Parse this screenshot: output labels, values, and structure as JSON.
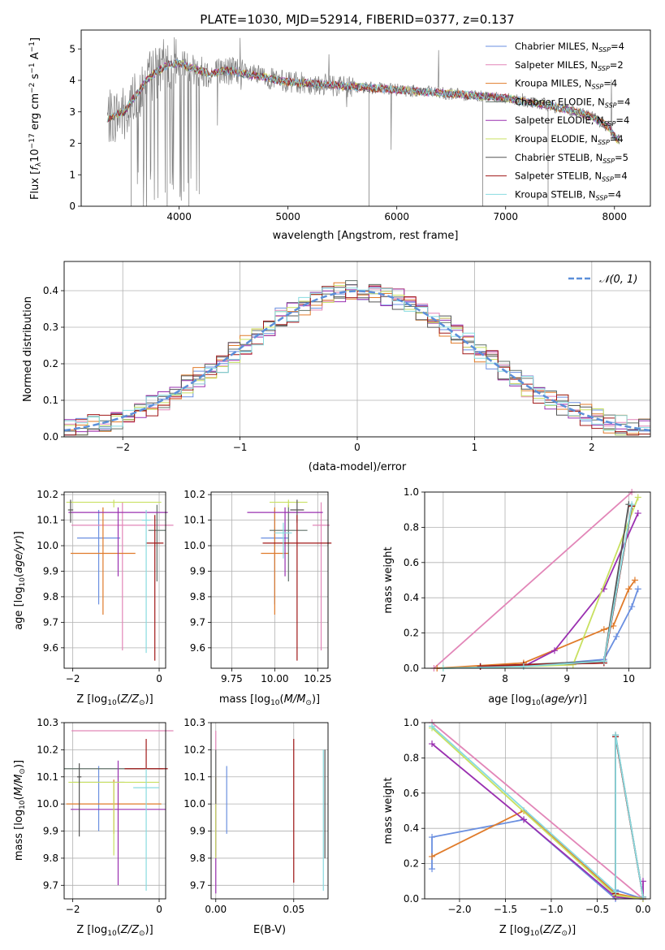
{
  "figure_title": "PLATE=1030, MJD=52914, FIBERID=0377, z=0.137",
  "colors": {
    "Chabrier MILES": "#6a8fe0",
    "Salpeter MILES": "#e286b8",
    "Kroupa MILES": "#e07b2a",
    "Chabrier ELODIE": "#607068",
    "Salpeter ELODIE": "#9a30b0",
    "Kroupa ELODIE": "#c8e060",
    "Chabrier STELIB": "#555555",
    "Salpeter STELIB": "#a01818",
    "Kroupa STELIB": "#88dbe0",
    "gaussian": "#5b8fd9",
    "grid": "#b0b0b0",
    "spectrum": "#808080"
  },
  "chart_data": [
    {
      "id": "spectrum",
      "type": "line",
      "title": "PLATE=1030, MJD=52914, FIBERID=0377, z=0.137",
      "xlabel": "wavelength [Angstrom, rest frame]",
      "ylabel": "Flux [f_λ 10^-17 erg cm^-2 s^-1 A^-1]",
      "xlim": [
        3100,
        8330
      ],
      "ylim": [
        0,
        5.6
      ],
      "xticks": [
        "4000",
        "5000",
        "6000",
        "7000",
        "8000"
      ],
      "yticks": [
        "0",
        "1",
        "2",
        "3",
        "4",
        "5"
      ],
      "grid": false,
      "legend_position": "right",
      "legend": [
        "Chabrier MILES, N_SSP=4",
        "Salpeter MILES, N_SSP=2",
        "Kroupa MILES, N_SSP=4",
        "Chabrier ELODIE, N_SSP=4",
        "Salpeter ELODIE, N_SSP=4",
        "Kroupa ELODIE, N_SSP=4",
        "Chabrier STELIB, N_SSP=5",
        "Salpeter STELIB, N_SSP=4",
        "Kroupa STELIB, N_SSP=4"
      ],
      "continuum": [
        [
          3340,
          2.8
        ],
        [
          3400,
          2.85
        ],
        [
          3450,
          2.95
        ],
        [
          3500,
          3.0
        ],
        [
          3550,
          3.3
        ],
        [
          3600,
          3.5
        ],
        [
          3700,
          4.0
        ],
        [
          3800,
          4.3
        ],
        [
          3900,
          4.5
        ],
        [
          4000,
          4.55
        ],
        [
          4100,
          4.4
        ],
        [
          4200,
          4.3
        ],
        [
          4300,
          4.2
        ],
        [
          4400,
          4.3
        ],
        [
          4500,
          4.3
        ],
        [
          4600,
          4.2
        ],
        [
          4700,
          4.15
        ],
        [
          4800,
          4.1
        ],
        [
          4900,
          4.0
        ],
        [
          5000,
          3.95
        ],
        [
          5200,
          3.9
        ],
        [
          5400,
          3.85
        ],
        [
          5600,
          3.8
        ],
        [
          5800,
          3.75
        ],
        [
          6000,
          3.7
        ],
        [
          6200,
          3.65
        ],
        [
          6400,
          3.6
        ],
        [
          6600,
          3.55
        ],
        [
          6800,
          3.5
        ],
        [
          7000,
          3.45
        ],
        [
          7200,
          3.3
        ],
        [
          7400,
          3.2
        ],
        [
          7600,
          3.05
        ],
        [
          7800,
          2.85
        ],
        [
          7950,
          2.5
        ],
        [
          8000,
          2.2
        ],
        [
          8050,
          2.05
        ]
      ]
    },
    {
      "id": "residuals",
      "type": "line",
      "xlabel": "(data-model)/error",
      "ylabel": "Normed distribution",
      "xlim": [
        -2.5,
        2.5
      ],
      "ylim": [
        0,
        0.48
      ],
      "xticks": [
        "−2",
        "−1",
        "0",
        "1",
        "2"
      ],
      "yticks": [
        "0.0",
        "0.1",
        "0.2",
        "0.3",
        "0.4"
      ],
      "grid": true,
      "legend_position": "top-right",
      "legend": [
        "𝒩(0, 1)"
      ],
      "gaussian": {
        "mean": 0,
        "sigma": 1
      }
    },
    {
      "id": "age-vs-Z",
      "type": "scatter",
      "xlabel": "Z [log10(Z/Z⊙)]",
      "ylabel": "age [log10(age/yr)]",
      "xlim": [
        -2.2,
        0.15
      ],
      "ylim": [
        9.52,
        10.21
      ],
      "xticks": [
        "−2",
        "0"
      ],
      "yticks": [
        "9.6",
        "9.7",
        "9.8",
        "9.9",
        "10.0",
        "10.1",
        "10.2"
      ],
      "grid": true,
      "points": [
        {
          "model": "Chabrier MILES",
          "x": -1.4,
          "xerr": 0.5,
          "y": 10.03,
          "yerr": [
            0.26,
            0.11
          ]
        },
        {
          "model": "Salpeter MILES",
          "x": -0.85,
          "xerr": 1.18,
          "y": 10.08,
          "yerr": [
            0.49,
            0.09
          ]
        },
        {
          "model": "Kroupa MILES",
          "x": -1.3,
          "xerr": 0.75,
          "y": 9.97,
          "yerr": [
            0.24,
            0.18
          ]
        },
        {
          "model": "Chabrier ELODIE",
          "x": -0.05,
          "xerr": 0.2,
          "y": 10.06,
          "yerr": [
            0.2,
            0.1
          ]
        },
        {
          "model": "Salpeter ELODIE",
          "x": -0.95,
          "xerr": 1.15,
          "y": 10.13,
          "yerr": [
            0.25,
            0.02
          ]
        },
        {
          "model": "Kroupa ELODIE",
          "x": -1.05,
          "xerr": 1.1,
          "y": 10.17,
          "yerr": [
            0.02,
            0.01
          ]
        },
        {
          "model": "Chabrier STELIB",
          "x": -2.05,
          "xerr": 0.06,
          "y": 10.14,
          "yerr": [
            0.05,
            0.04
          ]
        },
        {
          "model": "Salpeter STELIB",
          "x": -0.1,
          "xerr": 0.2,
          "y": 10.01,
          "yerr": [
            0.46,
            0.11
          ]
        },
        {
          "model": "Kroupa STELIB",
          "x": -0.3,
          "xerr": 0.1,
          "y": 10.1,
          "yerr": [
            0.52,
            0.04
          ]
        }
      ]
    },
    {
      "id": "age-vs-mass",
      "type": "scatter",
      "xlabel": "mass [log10(M/M⊙)]",
      "ylabel": "",
      "xlim": [
        9.63,
        10.31
      ],
      "ylim": [
        9.52,
        10.21
      ],
      "xticks": [
        "9.75",
        "10.00",
        "10.25"
      ],
      "yticks": [
        "9.6",
        "9.7",
        "9.8",
        "9.9",
        "10.0",
        "10.1",
        "10.2"
      ],
      "grid": true,
      "points": [
        {
          "model": "Chabrier MILES",
          "x": 10.0,
          "xerr": 0.08,
          "y": 10.03,
          "yerr": [
            0.26,
            0.11
          ]
        },
        {
          "model": "Salpeter MILES",
          "x": 10.27,
          "xerr": 0.05,
          "y": 10.08,
          "yerr": [
            0.49,
            0.09
          ]
        },
        {
          "model": "Kroupa MILES",
          "x": 10.0,
          "xerr": 0.08,
          "y": 9.97,
          "yerr": [
            0.24,
            0.18
          ]
        },
        {
          "model": "Chabrier ELODIE",
          "x": 10.08,
          "xerr": 0.11,
          "y": 10.06,
          "yerr": [
            0.2,
            0.1
          ]
        },
        {
          "model": "Salpeter ELODIE",
          "x": 10.06,
          "xerr": 0.22,
          "y": 10.13,
          "yerr": [
            0.25,
            0.02
          ]
        },
        {
          "model": "Kroupa ELODIE",
          "x": 10.08,
          "xerr": 0.11,
          "y": 10.17,
          "yerr": [
            0.02,
            0.01
          ]
        },
        {
          "model": "Chabrier STELIB",
          "x": 10.13,
          "xerr": 0.04,
          "y": 10.14,
          "yerr": [
            0.05,
            0.04
          ]
        },
        {
          "model": "Salpeter STELIB",
          "x": 10.13,
          "xerr": 0.2,
          "y": 10.01,
          "yerr": [
            0.46,
            0.11
          ]
        },
        {
          "model": "Kroupa STELIB",
          "x": 10.05,
          "xerr": 0.05,
          "y": 10.05,
          "yerr": [
            0.1,
            0.04
          ]
        }
      ]
    },
    {
      "id": "mass-weight-vs-age",
      "type": "line",
      "xlabel": "age [log10(age/yr)]",
      "ylabel": "mass weight",
      "xlim": [
        6.7,
        10.35
      ],
      "ylim": [
        0,
        1.0
      ],
      "xticks": [
        "7",
        "8",
        "9",
        "10"
      ],
      "yticks": [
        "0.0",
        "0.2",
        "0.4",
        "0.6",
        "0.8",
        "1.0"
      ],
      "grid": true,
      "series": [
        {
          "model": "Chabrier MILES",
          "x": [
            7.6,
            8.3,
            9.6,
            9.8,
            10.05,
            10.15
          ],
          "y": [
            0.01,
            0.01,
            0.05,
            0.18,
            0.35,
            0.45
          ]
        },
        {
          "model": "Salpeter MILES",
          "x": [
            6.85,
            10.05
          ],
          "y": [
            0.0,
            1.0
          ]
        },
        {
          "model": "Kroupa MILES",
          "x": [
            6.9,
            8.3,
            9.6,
            9.75,
            10.0,
            10.1
          ],
          "y": [
            0.0,
            0.03,
            0.22,
            0.24,
            0.45,
            0.5
          ]
        },
        {
          "model": "Chabrier ELODIE",
          "x": [
            7.6,
            8.3,
            9.6,
            10.05
          ],
          "y": [
            0.01,
            0.02,
            0.03,
            0.92
          ]
        },
        {
          "model": "Salpeter ELODIE",
          "x": [
            8.3,
            8.8,
            9.6,
            10.15
          ],
          "y": [
            0.01,
            0.1,
            0.45,
            0.88
          ]
        },
        {
          "model": "Kroupa ELODIE",
          "x": [
            7.0,
            8.3,
            9.1,
            10.15
          ],
          "y": [
            0.0,
            0.01,
            0.02,
            0.97
          ]
        },
        {
          "model": "Chabrier STELIB",
          "x": [
            7.6,
            8.3,
            9.6,
            10.0,
            10.05
          ],
          "y": [
            0.01,
            0.02,
            0.04,
            0.93,
            0.92
          ]
        },
        {
          "model": "Salpeter STELIB",
          "x": [
            7.6,
            8.3,
            9.6,
            10.05
          ],
          "y": [
            0.01,
            0.02,
            0.03,
            0.92
          ]
        },
        {
          "model": "Kroupa STELIB",
          "x": [
            7.0,
            8.3,
            9.6,
            10.05
          ],
          "y": [
            0.0,
            0.01,
            0.04,
            0.93
          ]
        }
      ]
    },
    {
      "id": "mass-vs-Z",
      "type": "scatter",
      "xlabel": "Z [log10(Z/Z⊙)]",
      "ylabel": "mass [log10(M/M⊙)]",
      "xlim": [
        -2.2,
        0.15
      ],
      "ylim": [
        9.65,
        10.3
      ],
      "xticks": [
        "−2",
        "0"
      ],
      "yticks": [
        "9.7",
        "9.8",
        "9.9",
        "10.0",
        "10.1",
        "10.2",
        "10.3"
      ],
      "grid": true,
      "points": [
        {
          "model": "Chabrier MILES",
          "x": -1.4,
          "xerr": 0.6,
          "y": 10.08,
          "yerr": [
            0.18,
            0.06
          ]
        },
        {
          "model": "Salpeter MILES",
          "x": -0.85,
          "xerr": 1.18,
          "y": 10.27,
          "yerr": [
            0.0,
            0.0
          ]
        },
        {
          "model": "Kroupa MILES",
          "x": -1.05,
          "xerr": 1.1,
          "y": 10.0,
          "yerr": [
            0.11,
            0.09
          ]
        },
        {
          "model": "Chabrier ELODIE",
          "x": -1.05,
          "xerr": 1.15,
          "y": 10.13,
          "yerr": [
            0.0,
            0.0
          ]
        },
        {
          "model": "Salpeter ELODIE",
          "x": -0.95,
          "xerr": 1.1,
          "y": 9.98,
          "yerr": [
            0.28,
            0.18
          ]
        },
        {
          "model": "Kroupa ELODIE",
          "x": -1.05,
          "xerr": 1.05,
          "y": 10.08,
          "yerr": [
            0.27,
            0.0
          ]
        },
        {
          "model": "Chabrier STELIB",
          "x": -1.85,
          "xerr": 0.05,
          "y": 10.1,
          "yerr": [
            0.22,
            0.05
          ]
        },
        {
          "model": "Salpeter STELIB",
          "x": -0.3,
          "xerr": 0.5,
          "y": 10.13,
          "yerr": [
            0.0,
            0.11
          ]
        },
        {
          "model": "Kroupa STELIB",
          "x": -0.3,
          "xerr": 0.3,
          "y": 10.06,
          "yerr": [
            0.38,
            0.07
          ]
        }
      ]
    },
    {
      "id": "mass-vs-EBV",
      "type": "scatter",
      "xlabel": "E(B-V)",
      "ylabel": "",
      "xlim": [
        -0.003,
        0.072
      ],
      "ylim": [
        9.65,
        10.3
      ],
      "xticks": [
        "0.00",
        "0.05"
      ],
      "yticks": [
        "9.7",
        "9.8",
        "9.9",
        "10.0",
        "10.1",
        "10.2",
        "10.3"
      ],
      "grid": true,
      "points": [
        {
          "model": "Chabrier MILES",
          "x": 0.007,
          "y": 10.02,
          "yerr": [
            0.13,
            0.12
          ]
        },
        {
          "model": "Salpeter MILES",
          "x": 0.0,
          "y": 10.15,
          "yerr": [
            0.35,
            0.12
          ]
        },
        {
          "model": "Kroupa MILES",
          "x": 0.0,
          "y": 10.0,
          "yerr": [
            0.1,
            0.1
          ]
        },
        {
          "model": "Chabrier ELODIE",
          "x": 0.0,
          "y": 10.05,
          "yerr": [
            0.24,
            0.15
          ]
        },
        {
          "model": "Salpeter ELODIE",
          "x": 0.0,
          "y": 9.85,
          "yerr": [
            0.18,
            0.15
          ]
        },
        {
          "model": "Kroupa ELODIE",
          "x": 0.0,
          "y": 9.9,
          "yerr": [
            0.1,
            0.1
          ]
        },
        {
          "model": "Chabrier STELIB",
          "x": 0.07,
          "y": 9.95,
          "yerr": [
            0.15,
            0.25
          ]
        },
        {
          "model": "Salpeter STELIB",
          "x": 0.05,
          "y": 9.97,
          "yerr": [
            0.26,
            0.27
          ]
        },
        {
          "model": "Kroupa STELIB",
          "x": 0.069,
          "y": 9.95,
          "yerr": [
            0.27,
            0.25
          ]
        }
      ]
    },
    {
      "id": "mass-weight-vs-Z",
      "type": "line",
      "xlabel": "Z [log10(Z/Z⊙)]",
      "ylabel": "mass weight",
      "xlim": [
        -2.38,
        0.08
      ],
      "ylim": [
        0,
        1.0
      ],
      "xticks": [
        "−2.0",
        "−1.5",
        "−1.0",
        "−0.5",
        "0.0"
      ],
      "yticks": [
        "0.0",
        "0.2",
        "0.4",
        "0.6",
        "0.8",
        "1.0"
      ],
      "grid": true,
      "series": [
        {
          "model": "Chabrier MILES",
          "x": [
            -2.3,
            -2.3,
            -1.3,
            -0.3,
            -0.3,
            0.0
          ],
          "y": [
            0.17,
            0.35,
            0.45,
            0.0,
            0.05,
            0.0
          ]
        },
        {
          "model": "Salpeter MILES",
          "x": [
            -2.3,
            0.0
          ],
          "y": [
            1.0,
            0.0
          ]
        },
        {
          "model": "Kroupa MILES",
          "x": [
            -2.3,
            -1.3,
            -0.3,
            0.0
          ],
          "y": [
            0.24,
            0.5,
            0.03,
            0.0
          ]
        },
        {
          "model": "Chabrier ELODIE",
          "x": [
            -0.3,
            -0.3,
            0.0
          ],
          "y": [
            0.03,
            0.92,
            0.01
          ]
        },
        {
          "model": "Salpeter ELODIE",
          "x": [
            -2.3,
            -1.3,
            -0.3,
            0.0,
            0.0
          ],
          "y": [
            0.88,
            0.45,
            0.01,
            0.0,
            0.1
          ]
        },
        {
          "model": "Kroupa ELODIE",
          "x": [
            -2.3,
            -0.3,
            0.0
          ],
          "y": [
            0.97,
            0.02,
            0.0
          ]
        },
        {
          "model": "Chabrier STELIB",
          "x": [
            -0.3,
            -0.3,
            0.0
          ],
          "y": [
            0.04,
            0.93,
            0.01
          ]
        },
        {
          "model": "Salpeter STELIB",
          "x": [
            -0.3,
            -0.3,
            0.0
          ],
          "y": [
            0.03,
            0.92,
            0.01
          ]
        },
        {
          "model": "Kroupa STELIB",
          "x": [
            -2.3,
            -0.3,
            -0.3,
            0.0
          ],
          "y": [
            0.98,
            0.04,
            0.93,
            0.01
          ]
        }
      ]
    }
  ]
}
